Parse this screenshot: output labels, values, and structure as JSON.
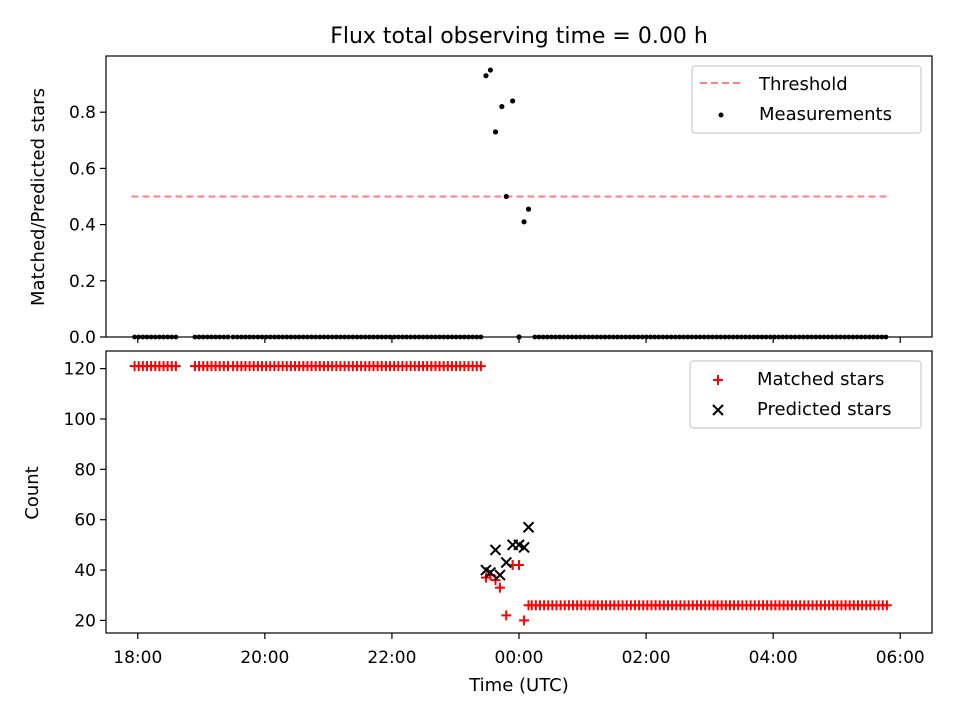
{
  "title": "Flux total observing time = 0.00 h",
  "colors": {
    "threshold": "#ff7f7f",
    "measurements": "#000000",
    "matched": "#ff0000",
    "predicted": "#000000"
  },
  "chart_data": [
    {
      "type": "scatter",
      "panel": "top",
      "ylabel": "Matched/Predicted stars",
      "xlim": [
        -6.5,
        6.5
      ],
      "ylim": [
        0,
        1.0
      ],
      "yticks": [
        "0.0",
        "0.2",
        "0.4",
        "0.6",
        "0.8"
      ],
      "grid": false,
      "legend": "top-right",
      "threshold": {
        "name": "Threshold",
        "x": [
          -6.1,
          5.82
        ],
        "y": 0.5,
        "style": "dashed"
      },
      "measurements": {
        "name": "Measurements",
        "zero_runs": [
          {
            "start": -6.05,
            "end": -5.4,
            "step": 0.065
          },
          {
            "start": -5.1,
            "end": -4.55,
            "step": 0.065
          },
          {
            "start": -4.5,
            "end": -0.6,
            "step": 0.065
          },
          {
            "start": 0.25,
            "end": 5.8,
            "step": 0.065
          }
        ],
        "points": [
          [
            -0.52,
            0.93
          ],
          [
            -0.45,
            0.95
          ],
          [
            -0.37,
            0.73
          ],
          [
            -0.27,
            0.82
          ],
          [
            -0.2,
            0.5
          ],
          [
            -0.1,
            0.84
          ],
          [
            0.0,
            0.0
          ],
          [
            0.08,
            0.41
          ],
          [
            0.15,
            0.455
          ]
        ]
      }
    },
    {
      "type": "scatter",
      "panel": "bottom",
      "xlabel": "Time (UTC)",
      "ylabel": "Count",
      "xlim": [
        -6.5,
        6.5
      ],
      "ylim": [
        15,
        127
      ],
      "yticks": [
        "20",
        "40",
        "60",
        "80",
        "100",
        "120"
      ],
      "xticks": [
        "18:00",
        "20:00",
        "22:00",
        "00:00",
        "02:00",
        "04:00",
        "06:00"
      ],
      "grid": false,
      "legend": "top-right",
      "matched": {
        "name": "Matched stars",
        "runs": [
          {
            "start": -6.05,
            "end": -5.4,
            "step": 0.065,
            "y": 121
          },
          {
            "start": -5.1,
            "end": -4.55,
            "step": 0.065,
            "y": 121
          },
          {
            "start": -4.5,
            "end": -0.6,
            "step": 0.065,
            "y": 121
          },
          {
            "start": 0.2,
            "end": 5.8,
            "step": 0.065,
            "y": 26
          }
        ],
        "points": [
          [
            -0.52,
            37
          ],
          [
            -0.45,
            38
          ],
          [
            -0.37,
            36
          ],
          [
            -0.3,
            33
          ],
          [
            -0.2,
            22
          ],
          [
            -0.1,
            42
          ],
          [
            0.0,
            42
          ],
          [
            0.08,
            20
          ],
          [
            0.15,
            26
          ]
        ]
      },
      "predicted": {
        "name": "Predicted stars",
        "points": [
          [
            -0.52,
            40
          ],
          [
            -0.45,
            39
          ],
          [
            -0.37,
            48
          ],
          [
            -0.3,
            38
          ],
          [
            -0.2,
            43
          ],
          [
            -0.1,
            50
          ],
          [
            0.0,
            50
          ],
          [
            0.08,
            49
          ],
          [
            0.15,
            57
          ]
        ]
      }
    }
  ]
}
